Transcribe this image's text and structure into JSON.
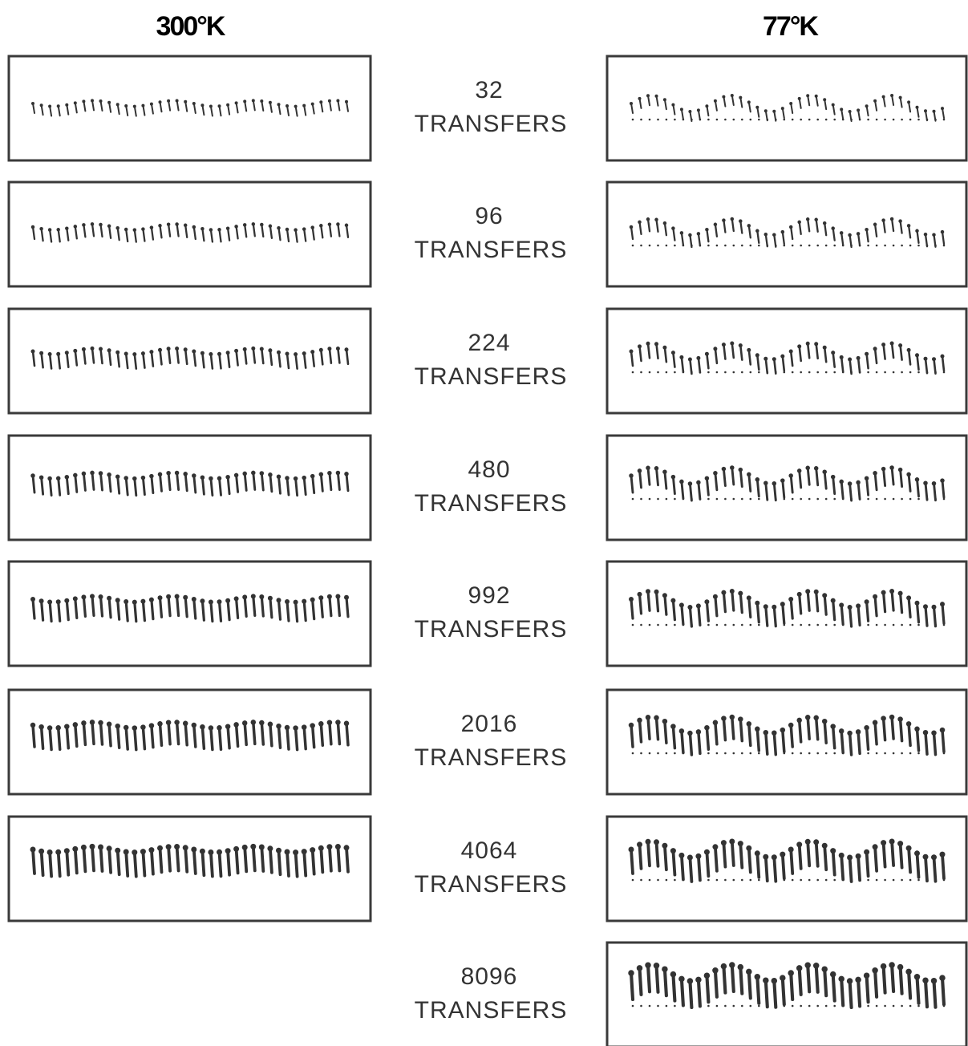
{
  "headers": {
    "left": "300°K",
    "right": "77°K"
  },
  "rows": [
    {
      "count": "32",
      "unit": "TRANSFERS"
    },
    {
      "count": "96",
      "unit": "TRANSFERS"
    },
    {
      "count": "224",
      "unit": "TRANSFERS"
    },
    {
      "count": "480",
      "unit": "TRANSFERS"
    },
    {
      "count": "992",
      "unit": "TRANSFERS"
    },
    {
      "count": "2016",
      "unit": "TRANSFERS"
    },
    {
      "count": "4064",
      "unit": "TRANSFERS"
    },
    {
      "count": "8096",
      "unit": "TRANSFERS"
    }
  ]
}
